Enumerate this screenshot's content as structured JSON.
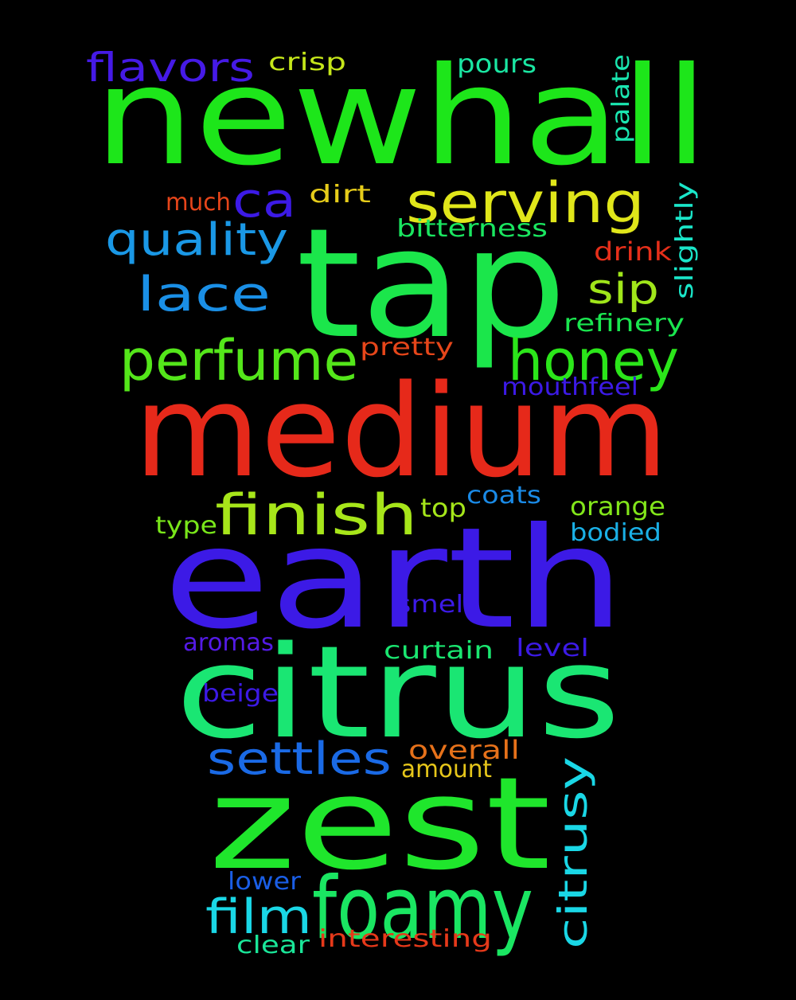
{
  "words": [
    {
      "text": "newhall",
      "color": "#1de61a"
    },
    {
      "text": "tap",
      "color": "#1be64b"
    },
    {
      "text": "medium",
      "color": "#e6291a"
    },
    {
      "text": "earth",
      "color": "#3c1ae6"
    },
    {
      "text": "citrus",
      "color": "#1ae673"
    },
    {
      "text": "zest",
      "color": "#1fe62c"
    },
    {
      "text": "foamy",
      "color": "#1ae662"
    },
    {
      "text": "serving",
      "color": "#e0e61a"
    },
    {
      "text": "honey",
      "color": "#2be61a"
    },
    {
      "text": "perfume",
      "color": "#54e61a"
    },
    {
      "text": "finish",
      "color": "#a7e61a"
    },
    {
      "text": "lace",
      "color": "#1a8fe6"
    },
    {
      "text": "quality",
      "color": "#1a98e6"
    },
    {
      "text": "ca",
      "color": "#3c1ae6"
    },
    {
      "text": "flavors",
      "color": "#451ae6"
    },
    {
      "text": "sip",
      "color": "#a0e61a"
    },
    {
      "text": "settles",
      "color": "#1a6ae6"
    },
    {
      "text": "film",
      "color": "#1ad7e6"
    },
    {
      "text": "citrusy",
      "color": "#1ad7e6"
    },
    {
      "text": "crisp",
      "color": "#c5e61a"
    },
    {
      "text": "pours",
      "color": "#1ae6a2"
    },
    {
      "text": "palate",
      "color": "#1ae6b0"
    },
    {
      "text": "slightly",
      "color": "#1ae6c9"
    },
    {
      "text": "much",
      "color": "#e6451a"
    },
    {
      "text": "dirt",
      "color": "#e6cc1a"
    },
    {
      "text": "bitterness",
      "color": "#1ae660"
    },
    {
      "text": "drink",
      "color": "#e62f1a"
    },
    {
      "text": "refinery",
      "color": "#1ae64f"
    },
    {
      "text": "pretty",
      "color": "#e6461a"
    },
    {
      "text": "mouthfeel",
      "color": "#3c1ae6"
    },
    {
      "text": "top",
      "color": "#a5e61a"
    },
    {
      "text": "coats",
      "color": "#1a8ae6"
    },
    {
      "text": "orange",
      "color": "#82e61a"
    },
    {
      "text": "type",
      "color": "#79e61a"
    },
    {
      "text": "bodied",
      "color": "#1ab0e6"
    },
    {
      "text": "smell",
      "color": "#3c1ae6"
    },
    {
      "text": "aromas",
      "color": "#541ae6"
    },
    {
      "text": "curtain",
      "color": "#1ae670"
    },
    {
      "text": "level",
      "color": "#3c1ae6"
    },
    {
      "text": "beige",
      "color": "#3c1ae6"
    },
    {
      "text": "overall",
      "color": "#e6711a"
    },
    {
      "text": "amount",
      "color": "#e6c61a"
    },
    {
      "text": "lower",
      "color": "#1a5ee6"
    },
    {
      "text": "clear",
      "color": "#1ae699"
    },
    {
      "text": "interesting",
      "color": "#e6391a"
    }
  ]
}
